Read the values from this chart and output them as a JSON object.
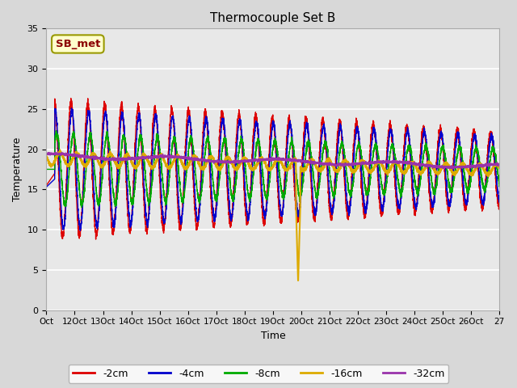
{
  "title": "Thermocouple Set B",
  "xlabel": "Time",
  "ylabel": "Temperature",
  "xlim": [
    0,
    27
  ],
  "ylim": [
    0,
    35
  ],
  "yticks": [
    0,
    5,
    10,
    15,
    20,
    25,
    30,
    35
  ],
  "xtick_positions": [
    0,
    1,
    2,
    3,
    4,
    5,
    6,
    7,
    8,
    9,
    10,
    11,
    12,
    13,
    14,
    15,
    16
  ],
  "xtick_labels": [
    "Oct",
    "12Oct",
    "13Oct",
    "14Oct",
    "15Oct",
    "16Oct",
    "17Oct",
    "18Oct",
    "19Oct",
    "20Oct",
    "21Oct",
    "22Oct",
    "23Oct",
    "24Oct",
    "25Oct",
    "26Oct",
    "27"
  ],
  "legend_entries": [
    {
      "label": "-2cm",
      "color": "#dd0000"
    },
    {
      "label": "-4cm",
      "color": "#0000cc"
    },
    {
      "label": "-8cm",
      "color": "#00aa00"
    },
    {
      "label": "-16cm",
      "color": "#ddaa00"
    },
    {
      "label": "-32cm",
      "color": "#9933aa"
    }
  ],
  "annotation_label": "SB_met",
  "annotation_color": "#8b0000",
  "annotation_bg": "#ffffcc",
  "annotation_border": "#999900",
  "title_fontsize": 11,
  "axis_label_fontsize": 9,
  "tick_fontsize": 8,
  "bg_color": "#d8d8d8",
  "plot_bg": "#e8e8e8",
  "grid_color": "#ffffff",
  "base_temp": 17.5,
  "spike_day": 15.0
}
